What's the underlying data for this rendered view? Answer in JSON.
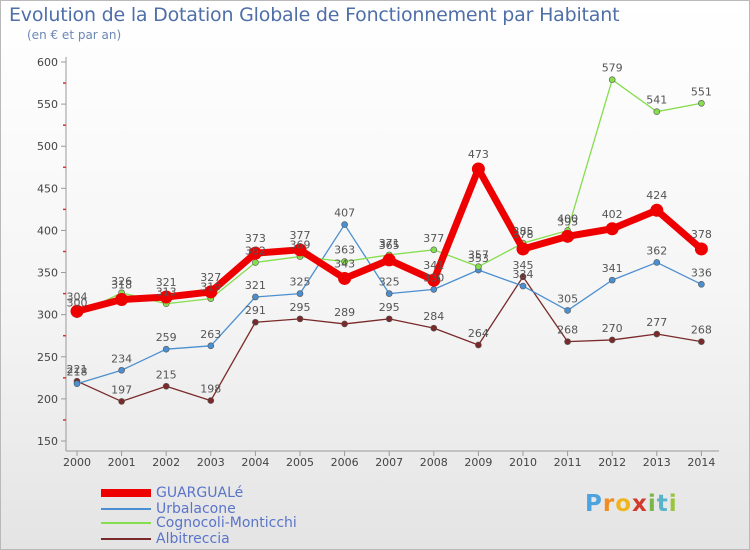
{
  "title": "Evolution de la Dotation Globale de Fonctionnement par Habitant",
  "subtitle": "(en € et par an)",
  "logo": {
    "letters": [
      "P",
      "r",
      "o",
      "x",
      "i",
      "t",
      "i"
    ],
    "colors": [
      "#4da3e0",
      "#f28c1e",
      "#f0b41e",
      "#d23a2c",
      "#7ab648",
      "#58b4c9",
      "#9ac43c"
    ]
  },
  "chart_data": {
    "type": "line",
    "title": "Evolution de la Dotation Globale de Fonctionnement par Habitant",
    "subtitle": "(en € et par an)",
    "x": [
      "2000",
      "2001",
      "2002",
      "2003",
      "2004",
      "2005",
      "2006",
      "2007",
      "2008",
      "2009",
      "2010",
      "2011",
      "2012",
      "2013",
      "2014"
    ],
    "ylim": [
      150,
      600
    ],
    "yticks": [
      150,
      200,
      250,
      300,
      350,
      400,
      450,
      500,
      550,
      600
    ],
    "grid": false,
    "legend": "bottom-left",
    "series": [
      {
        "name": "GUARGUALé",
        "color": "#ee0000",
        "values": [
          304,
          318,
          321,
          327,
          373,
          377,
          343,
          365,
          341,
          473,
          378,
          393,
          402,
          424,
          378
        ]
      },
      {
        "name": "Urbalacone",
        "color": "#4b8fd0",
        "values": [
          218,
          234,
          259,
          263,
          321,
          325,
          407,
          325,
          330,
          353,
          334,
          305,
          341,
          362,
          336
        ]
      },
      {
        "name": "Cognocoli-Monticchi",
        "color": "#86dd4e",
        "values": [
          300,
          326,
          313,
          319,
          362,
          369,
          363,
          371,
          377,
          357,
          385,
          400,
          579,
          541,
          551
        ]
      },
      {
        "name": "Albitreccia",
        "color": "#7a2a2a",
        "values": [
          221,
          197,
          215,
          198,
          291,
          295,
          289,
          295,
          284,
          264,
          345,
          268,
          270,
          277,
          268
        ]
      }
    ]
  }
}
